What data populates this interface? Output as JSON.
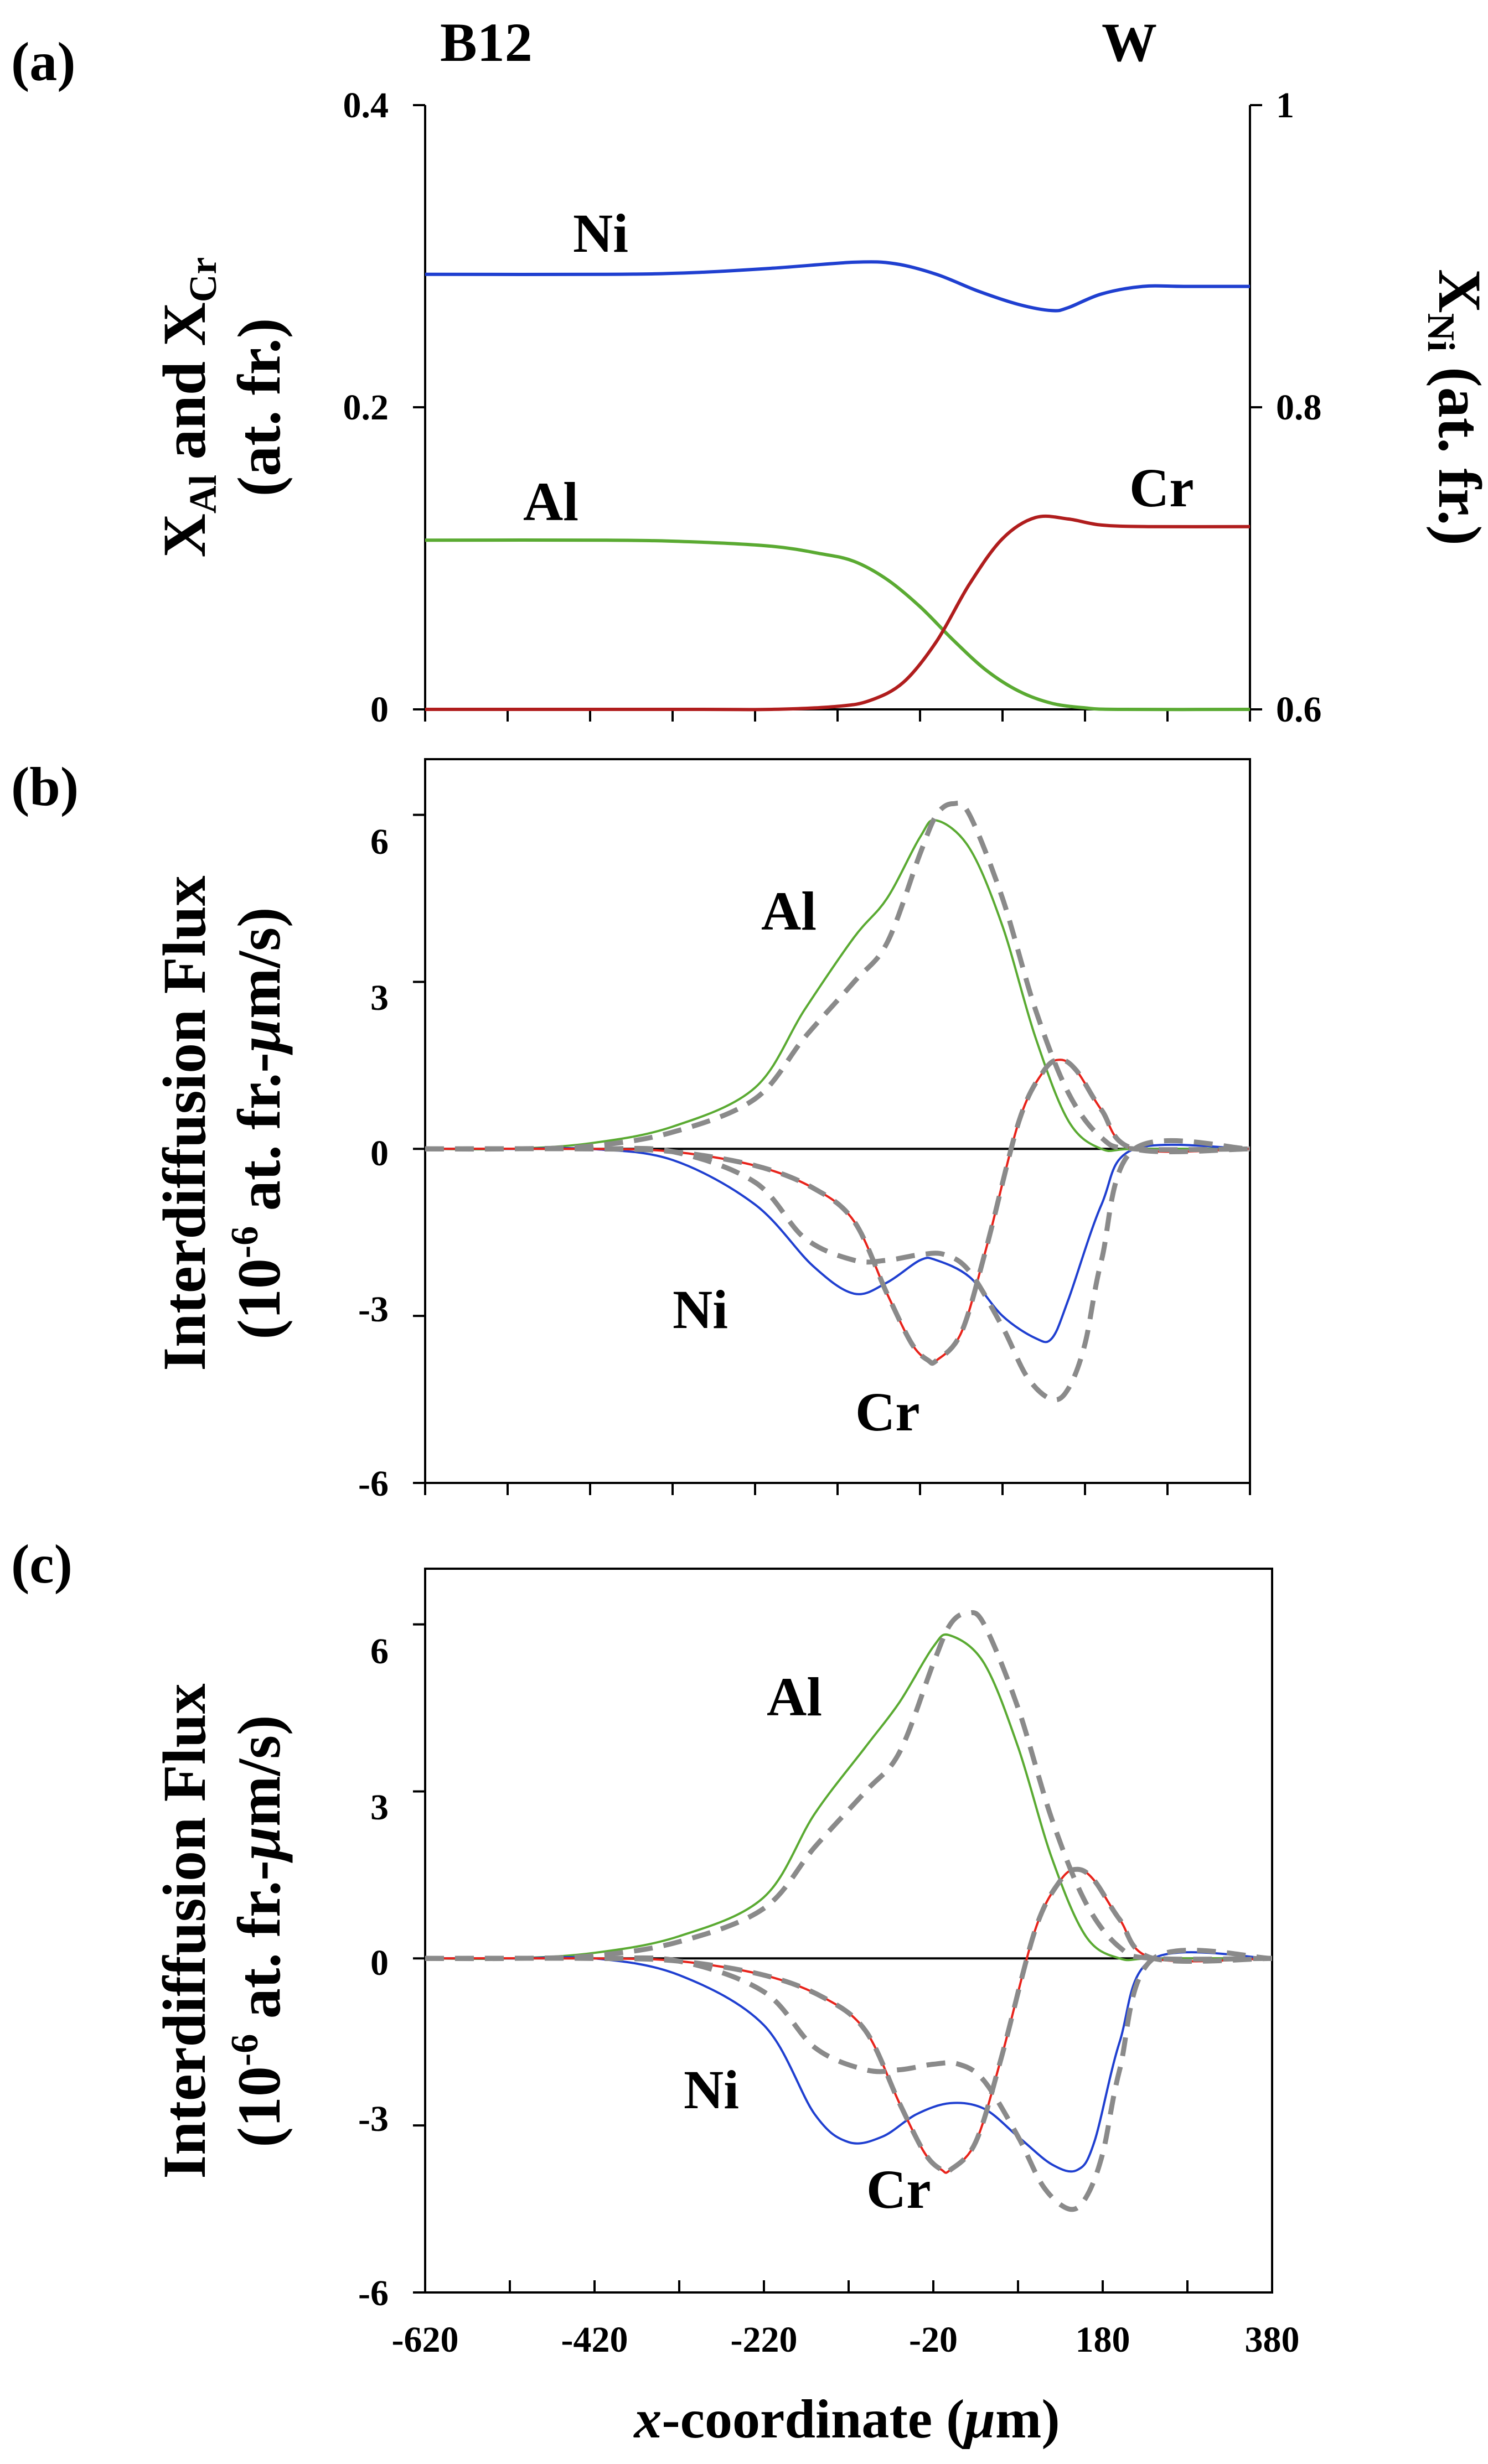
{
  "chart_data": [
    {
      "panel": "(a)",
      "type": "line",
      "xlim": [
        -620,
        380
      ],
      "ylim": [
        0,
        0.4
      ],
      "y2lim": [
        0.6,
        1.0
      ],
      "yticks": [
        "0",
        "0.2",
        "0.4"
      ],
      "y2ticks": [
        "0.6",
        "0.8",
        "1"
      ],
      "ylabel_lines": [
        "X",
        "Al",
        " and X",
        "Cr",
        "(at. fr.)"
      ],
      "y2label": [
        "X",
        "Ni",
        " (at. fr.)"
      ],
      "top_left_label": "B12",
      "top_right_label": "W",
      "colors": {
        "Ni": "#1f3fd0",
        "Al": "#5aaa32",
        "Cr": "#b01d1d"
      },
      "series": [
        {
          "name": "Ni",
          "axis": "right",
          "label": "Ni",
          "x": [
            -620,
            -400,
            -300,
            -200,
            -100,
            -50,
            0,
            50,
            100,
            140,
            160,
            200,
            250,
            300,
            380
          ],
          "values": [
            0.888,
            0.888,
            0.889,
            0.892,
            0.896,
            0.895,
            0.888,
            0.877,
            0.868,
            0.864,
            0.866,
            0.875,
            0.88,
            0.88,
            0.88
          ]
        },
        {
          "name": "Al",
          "axis": "left",
          "label": "Al",
          "x": [
            -620,
            -400,
            -300,
            -200,
            -140,
            -100,
            -60,
            -20,
            20,
            60,
            100,
            140,
            180,
            220,
            380
          ],
          "values": [
            0.112,
            0.112,
            0.111,
            0.108,
            0.103,
            0.098,
            0.086,
            0.068,
            0.046,
            0.026,
            0.012,
            0.004,
            0.001,
            0.0,
            0.0
          ]
        },
        {
          "name": "Cr",
          "axis": "left",
          "label": "Cr",
          "x": [
            -620,
            -300,
            -200,
            -120,
            -80,
            -40,
            0,
            40,
            80,
            120,
            160,
            200,
            260,
            380
          ],
          "values": [
            0.0,
            0.0,
            0.0,
            0.002,
            0.006,
            0.018,
            0.045,
            0.083,
            0.113,
            0.127,
            0.126,
            0.122,
            0.121,
            0.121
          ]
        }
      ]
    },
    {
      "panel": "(b)",
      "type": "line",
      "xlim": [
        -620,
        380
      ],
      "ylim": [
        -6,
        7
      ],
      "yticks": [
        "-6",
        "-3",
        "0",
        "3",
        "6"
      ],
      "ylabel_lines": [
        "Interdiffusion Flux",
        "(10",
        "-6",
        " at. fr.-",
        "μ",
        "m/s)"
      ],
      "colors": {
        "Al": "#5aaa32",
        "Ni": "#1f3fd0",
        "Cr": "#e8231b",
        "dashed": "#8a8a8a"
      },
      "series": [
        {
          "name": "Al",
          "label": "Al",
          "style": "solid",
          "x": [
            -620,
            -520,
            -420,
            -320,
            -220,
            -160,
            -100,
            -60,
            -20,
            0,
            40,
            80,
            120,
            160,
            200,
            240,
            380
          ],
          "values": [
            0,
            0,
            0.1,
            0.4,
            1.1,
            2.5,
            3.8,
            4.5,
            5.6,
            5.9,
            5.4,
            4,
            2,
            0.5,
            0,
            0,
            0
          ]
        },
        {
          "name": "Ni",
          "label": "Ni",
          "style": "solid",
          "x": [
            -620,
            -520,
            -420,
            -320,
            -220,
            -150,
            -100,
            -60,
            -20,
            0,
            40,
            80,
            120,
            140,
            160,
            200,
            240,
            380
          ],
          "values": [
            0,
            0,
            0,
            -0.2,
            -1,
            -2.1,
            -2.6,
            -2.4,
            -2,
            -2,
            -2.3,
            -3,
            -3.4,
            -3.4,
            -2.7,
            -1,
            0,
            0
          ]
        },
        {
          "name": "Cr",
          "label": "Cr",
          "style": "solid",
          "x": [
            -620,
            -420,
            -320,
            -220,
            -150,
            -100,
            -60,
            -30,
            -10,
            0,
            30,
            60,
            100,
            130,
            150,
            170,
            200,
            240,
            380
          ],
          "values": [
            0,
            0,
            -0.05,
            -0.3,
            -0.7,
            -1.3,
            -2.6,
            -3.5,
            -3.8,
            -3.8,
            -3.3,
            -1.8,
            0.5,
            1.4,
            1.6,
            1.4,
            0.7,
            0,
            0
          ]
        },
        {
          "name": "Al-model",
          "style": "dashed",
          "x": [
            -620,
            -520,
            -420,
            -320,
            -220,
            -160,
            -100,
            -60,
            -20,
            0,
            20,
            40,
            80,
            120,
            160,
            200,
            240,
            380
          ],
          "values": [
            0,
            0,
            0.05,
            0.3,
            0.9,
            2,
            3,
            3.7,
            5.3,
            6,
            6.2,
            6,
            4.5,
            2.5,
            1,
            0.2,
            0,
            0
          ]
        },
        {
          "name": "Ni-model",
          "style": "dashed",
          "x": [
            -620,
            -420,
            -320,
            -220,
            -160,
            -100,
            -60,
            -20,
            10,
            40,
            80,
            110,
            140,
            160,
            180,
            200,
            240,
            380
          ],
          "values": [
            0,
            0,
            -0.05,
            -0.6,
            -1.6,
            -2,
            -2,
            -1.9,
            -1.9,
            -2.2,
            -3.2,
            -4.1,
            -4.5,
            -4.3,
            -3.5,
            -2,
            0,
            0
          ]
        },
        {
          "name": "Cr-model",
          "style": "dashed",
          "x": [
            -620,
            -420,
            -320,
            -220,
            -150,
            -100,
            -60,
            -30,
            -10,
            0,
            30,
            60,
            100,
            130,
            150,
            170,
            200,
            240,
            380
          ],
          "values": [
            0,
            0,
            -0.05,
            -0.3,
            -0.7,
            -1.3,
            -2.6,
            -3.5,
            -3.8,
            -3.8,
            -3.3,
            -1.8,
            0.5,
            1.4,
            1.6,
            1.4,
            0.7,
            0,
            0
          ]
        }
      ]
    },
    {
      "panel": "(c)",
      "type": "line",
      "xlim": [
        -620,
        380
      ],
      "ylim": [
        -6,
        7
      ],
      "yticks": [
        "-6",
        "-3",
        "0",
        "3",
        "6"
      ],
      "xticks": [
        "-620",
        "-420",
        "-220",
        "-20",
        "180",
        "380"
      ],
      "xlabel_parts": [
        "x",
        "-coordinate (",
        "μ",
        "m)"
      ],
      "ylabel_lines": [
        "Interdiffusion Flux",
        "(10",
        "-6",
        " at. fr.-",
        "μ",
        "m/s)"
      ],
      "colors": {
        "Al": "#5aaa32",
        "Ni": "#1f3fd0",
        "Cr": "#e8231b",
        "dashed": "#8a8a8a"
      },
      "series": [
        {
          "name": "Al",
          "label": "Al",
          "style": "solid",
          "x": [
            -620,
            -520,
            -420,
            -320,
            -220,
            -160,
            -100,
            -60,
            -20,
            0,
            40,
            80,
            120,
            160,
            200,
            240,
            380
          ],
          "values": [
            0,
            0,
            0.1,
            0.4,
            1.1,
            2.6,
            3.8,
            4.6,
            5.6,
            5.8,
            5.3,
            3.8,
            1.8,
            0.4,
            0,
            0,
            0
          ]
        },
        {
          "name": "Ni",
          "label": "Ni",
          "style": "solid",
          "x": [
            -620,
            -520,
            -420,
            -320,
            -220,
            -160,
            -120,
            -80,
            -40,
            0,
            40,
            80,
            120,
            150,
            170,
            200,
            240,
            380
          ],
          "values": [
            0,
            0,
            0,
            -0.3,
            -1.2,
            -2.8,
            -3.3,
            -3.2,
            -2.8,
            -2.6,
            -2.7,
            -3.2,
            -3.7,
            -3.8,
            -3.3,
            -1.5,
            0,
            0
          ]
        },
        {
          "name": "Cr",
          "label": "Cr",
          "style": "solid",
          "x": [
            -620,
            -420,
            -320,
            -220,
            -150,
            -100,
            -60,
            -30,
            -10,
            0,
            30,
            60,
            100,
            130,
            150,
            170,
            200,
            240,
            380
          ],
          "values": [
            0,
            0,
            -0.05,
            -0.3,
            -0.7,
            -1.3,
            -2.6,
            -3.5,
            -3.8,
            -3.8,
            -3.3,
            -1.8,
            0.5,
            1.4,
            1.6,
            1.4,
            0.7,
            0,
            0
          ]
        },
        {
          "name": "Al-model",
          "style": "dashed",
          "x": [
            -620,
            -520,
            -420,
            -320,
            -220,
            -160,
            -100,
            -60,
            -20,
            0,
            20,
            40,
            80,
            120,
            160,
            200,
            240,
            380
          ],
          "values": [
            0,
            0,
            0.05,
            0.3,
            0.9,
            2,
            3,
            3.7,
            5.3,
            6,
            6.2,
            6,
            4.5,
            2.5,
            1,
            0.2,
            0,
            0
          ]
        },
        {
          "name": "Ni-model",
          "style": "dashed",
          "x": [
            -620,
            -420,
            -320,
            -220,
            -160,
            -100,
            -60,
            -20,
            10,
            40,
            80,
            110,
            140,
            160,
            180,
            200,
            240,
            380
          ],
          "values": [
            0,
            0,
            -0.05,
            -0.6,
            -1.6,
            -2,
            -2,
            -1.9,
            -1.9,
            -2.2,
            -3.2,
            -4.1,
            -4.5,
            -4.3,
            -3.5,
            -2,
            0,
            0
          ]
        },
        {
          "name": "Cr-model",
          "style": "dashed",
          "x": [
            -620,
            -420,
            -320,
            -220,
            -150,
            -100,
            -60,
            -30,
            -10,
            0,
            30,
            60,
            100,
            130,
            150,
            170,
            200,
            240,
            380
          ],
          "values": [
            0,
            0,
            -0.05,
            -0.3,
            -0.7,
            -1.3,
            -2.6,
            -3.5,
            -3.8,
            -3.8,
            -3.3,
            -1.8,
            0.5,
            1.4,
            1.6,
            1.4,
            0.7,
            0,
            0
          ]
        }
      ]
    }
  ]
}
